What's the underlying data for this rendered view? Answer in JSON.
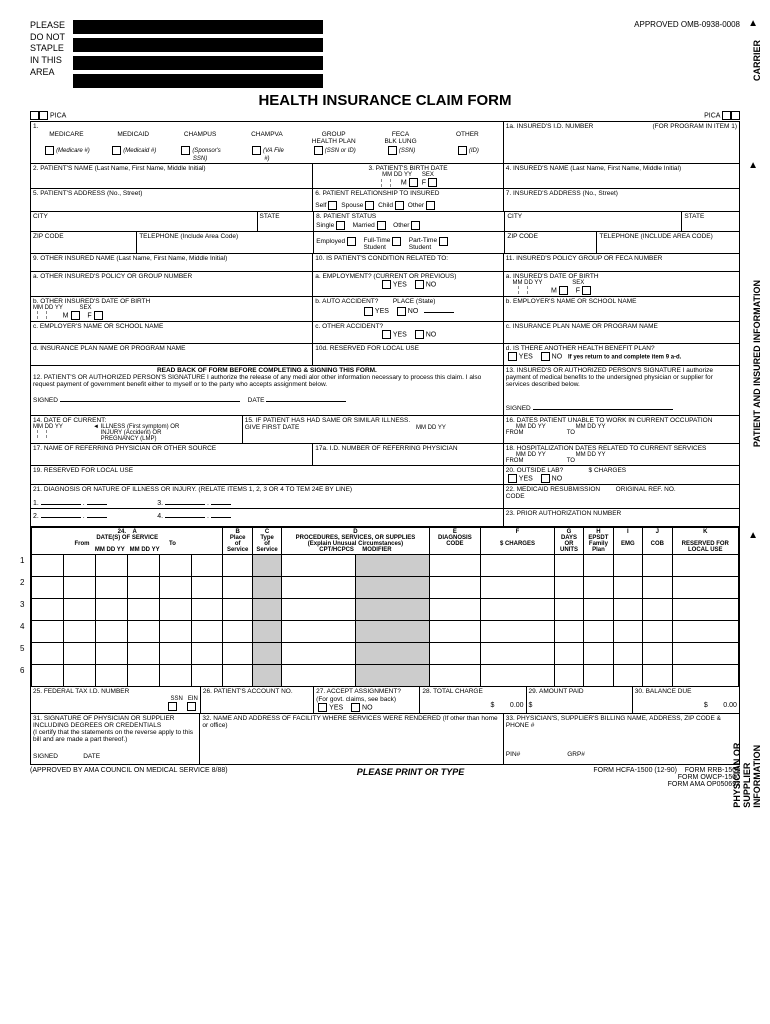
{
  "header": {
    "staple_text": "PLEASE\nDO NOT\nSTAPLE\nIN THIS\nAREA",
    "approved": "APPROVED OMB-0938-0008",
    "title": "HEALTH INSURANCE CLAIM FORM",
    "pica": "PICA"
  },
  "side": {
    "carrier": "CARRIER",
    "patient": "PATIENT AND INSURED INFORMATION",
    "physician": "PHYSICIAN OR SUPPLIER INFORMATION"
  },
  "box1": {
    "medicare": "MEDICARE",
    "medicaid": "MEDICAID",
    "champus": "CHAMPUS",
    "champva": "CHAMPVA",
    "group": "GROUP\nHEALTH PLAN",
    "feca": "FECA\nBLK LUNG",
    "other": "OTHER",
    "medicare_sub": "(Medicare #)",
    "medicaid_sub": "(Medicaid #)",
    "champus_sub": "(Sponsor's\nSSN)",
    "champva_sub": "(VA File\n#)",
    "group_sub": "(SSN or ID)",
    "feca_sub": "(SSN)",
    "other_sub": "(ID)"
  },
  "box1a": "1a. INSURED'S I.D. NUMBER",
  "box1a_note": "(FOR PROGRAM IN ITEM 1)",
  "box2": "2. PATIENT'S NAME (Last Name, First Name, Middle Initial)",
  "box3": "3. PATIENT'S BIRTH DATE",
  "box3_mmddyy": "MM   DD   YY",
  "box3_sex": "SEX",
  "box3_m": "M",
  "box3_f": "F",
  "box4": "4. INSURED'S NAME (Last Name, First Name, Middle Initial)",
  "box5": "5. PATIENT'S ADDRESS (No., Street)",
  "box6": "6. PATIENT RELATIONSHIP TO INSURED",
  "box6_self": "Self",
  "box6_spouse": "Spouse",
  "box6_child": "Child",
  "box6_other": "Other",
  "box7": "7. INSURED'S ADDRESS (No., Street)",
  "city": "CITY",
  "state": "STATE",
  "zip": "ZIP CODE",
  "tel": "TELEPHONE (Include Area Code)",
  "tel_upper": "TELEPHONE (INCLUDE AREA CODE)",
  "box8": "8. PATIENT STATUS",
  "box8_single": "Single",
  "box8_married": "Married",
  "box8_other": "Other",
  "box8_emp": "Employed",
  "box8_ft": "Full-Time\nStudent",
  "box8_pt": "Part-Time\nStudent",
  "box9": "9. OTHER INSURED NAME (Last Name, First Name, Middle Initial)",
  "box9a": "a. OTHER INSURED'S POLICY OR GROUP NUMBER",
  "box9b": "b. OTHER INSURED'S DATE OF BIRTH",
  "box9c": "c. EMPLOYER'S NAME OR SCHOOL NAME",
  "box9d": "d. INSURANCE PLAN NAME OR PROGRAM NAME",
  "box10": "10. IS PATIENT'S CONDITION RELATED TO:",
  "box10a": "a. EMPLOYMENT? (CURRENT OR PREVIOUS)",
  "box10b": "b. AUTO ACCIDENT?",
  "box10b_place": "PLACE (State)",
  "box10c": "c. OTHER ACCIDENT?",
  "box10d": "10d. RESERVED FOR LOCAL USE",
  "yes": "YES",
  "no": "NO",
  "box11": "11. INSURED'S POLICY GROUP OR FECA NUMBER",
  "box11a": "a. INSURED'S DATE OF BIRTH",
  "box11b": "b. EMPLOYER'S NAME OR SCHOOL NAME",
  "box11c": "c. INSURANCE PLAN NAME OR PROGRAM NAME",
  "box11d": "d. IS THERE ANOTHER HEALTH BENEFIT PLAN?",
  "box11d_note": "If yes return to and complete item 9 a-d.",
  "box12_head": "READ BACK OF FORM BEFORE COMPLETING & SIGNING THIS FORM.",
  "box12": "12. PATIENT'S OR AUTHORIZED PERSON'S SIGNATURE I authorize the release of any medi alor other information necessary to process this claim. I also request payment of government benefit either to myself or to the party who accepts assignment below.",
  "box13": "13. INSURED'S OR AUTHORIZED PERSON'S SIGNATURE I authorize payment of medical benefits to the undersigned physician or supplier for services described below.",
  "signed": "SIGNED",
  "date": "DATE",
  "box14": "14. DATE OF CURRENT:",
  "box14_sub": "ILLNESS (First symptom) OR\nINJURY (Accident) OR\nPREGNANCY (LMP)",
  "box15": "15. IF PATIENT HAS HAD SAME OR SIMILAR ILLNESS.\nGIVE FIRST DATE",
  "box16": "16. DATES PATIENT UNABLE TO WORK IN CURRENT OCCUPATION",
  "from": "FROM",
  "to": "TO",
  "box17": "17. NAME OF REFERRING PHYSICIAN OR OTHER SOURCE",
  "box17a": "17a. I.D. NUMBER OF REFERRING PHYSICIAN",
  "box18": "18. HOSPITALIZATION DATES RELATED TO CURRENT SERVICES",
  "box19": "19. RESERVED FOR LOCAL USE",
  "box20": "20. OUTSIDE LAB?",
  "box20_charges": "$ CHARGES",
  "box21": "21. DIAGNOSIS OR NATURE OF ILLNESS OR INJURY. (RELATE ITEMS 1, 2, 3 OR 4 TO TEM 24E BY LINE)",
  "box22": "22. MEDICAID RESUBMISSION\nCODE",
  "box22_ref": "ORIGINAL REF. NO.",
  "box23": "23. PRIOR AUTHORIZATION NUMBER",
  "box24": {
    "A": "A",
    "B": "B",
    "C": "C",
    "D": "D",
    "E": "E",
    "F": "F",
    "G": "G",
    "H": "H",
    "I": "I",
    "J": "J",
    "K": "K",
    "dates": "DATE(S) OF SERVICE",
    "from": "From",
    "to": "To",
    "mm": "MM",
    "dd": "DD",
    "yy": "YY",
    "place": "Place\nof\nService",
    "type": "Type\nof\nService",
    "proc": "PROCEDURES, SERVICES, OR SUPPLIES\n(Explain Unusual Circumstances)",
    "cpt": "CPT/HCPCS",
    "mod": "MODIFIER",
    "diag": "DIAGNOSIS\nCODE",
    "charges": "$ CHARGES",
    "days": "DAYS\nOR\nUNITS",
    "epsdt": "EPSDT\nFamily\nPlan",
    "emg": "EMG",
    "cob": "COB",
    "reserved": "RESERVED FOR\nLOCAL USE"
  },
  "box25": "25. FEDERAL TAX I.D. NUMBER",
  "ssn": "SSN",
  "ein": "EIN",
  "box26": "26. PATIENT'S ACCOUNT NO.",
  "box27": "27. ACCEPT ASSIGNMENT?\n(For govt. claims, see back)",
  "box28": "28. TOTAL CHARGE",
  "box29": "29. AMOUNT PAID",
  "box30": "30. BALANCE DUE",
  "zero": "0.00",
  "dollar": "$",
  "box31": "31. SIGNATURE OF PHYSICIAN OR SUPPLIER INCLUDING DEGREES OR CREDENTIALS\n(I certify that the statements on the reverse apply to this bill and are made a part thereof.)",
  "box32": "32. NAME AND ADDRESS OF FACILITY WHERE SERVICES WERE RENDERED (If other than home or office)",
  "box33": "33. PHYSICIAN'S, SUPPLIER'S BILLING NAME, ADDRESS, ZIP CODE & PHONE #",
  "pin": "PIN#",
  "grp": "GRP#",
  "footer": {
    "left": "(APPROVED BY AMA COUNCIL ON MEDICAL SERVICE 8/88)",
    "mid": "PLEASE PRINT OR TYPE",
    "r1": "FORM HCFA-1500   (12-90)",
    "r2": "FORM OWCP-1500",
    "r3": "FORM AMA OP050692",
    "r4": "FORM RRB-1500"
  }
}
